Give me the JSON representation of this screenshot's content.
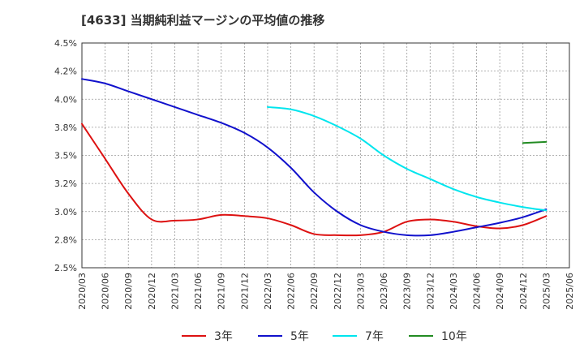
{
  "chart_data": {
    "type": "line",
    "title": "[4633]  当期純利益マージンの平均値の推移",
    "xlabel": "",
    "ylabel": "",
    "x_ticks": [
      "2020/03",
      "2020/06",
      "2020/09",
      "2020/12",
      "2021/03",
      "2021/06",
      "2021/09",
      "2021/12",
      "2022/03",
      "2022/06",
      "2022/09",
      "2022/12",
      "2023/03",
      "2023/06",
      "2023/09",
      "2023/12",
      "2024/03",
      "2024/06",
      "2024/09",
      "2024/12",
      "2025/03",
      "2025/06"
    ],
    "y_ticks": [
      "2.5%",
      "2.8%",
      "3.0%",
      "3.2%",
      "3.5%",
      "3.8%",
      "4.0%",
      "4.2%",
      "4.5%"
    ],
    "ylim": [
      2.5,
      4.5
    ],
    "grid": true,
    "legend_position": "bottom",
    "series": [
      {
        "name": "3年",
        "color": "#dd1111",
        "x": [
          "2020/03",
          "2020/06",
          "2020/09",
          "2020/12",
          "2021/03",
          "2021/06",
          "2021/09",
          "2021/12",
          "2022/03",
          "2022/06",
          "2022/09",
          "2022/12",
          "2023/03",
          "2023/06",
          "2023/09",
          "2023/12",
          "2024/03",
          "2024/06",
          "2024/09",
          "2024/12",
          "2025/03"
        ],
        "values": [
          3.78,
          3.47,
          3.16,
          2.93,
          2.92,
          2.93,
          2.97,
          2.96,
          2.94,
          2.88,
          2.8,
          2.79,
          2.79,
          2.82,
          2.91,
          2.93,
          2.91,
          2.87,
          2.85,
          2.88,
          2.96
        ]
      },
      {
        "name": "5年",
        "color": "#1111cc",
        "x": [
          "2020/03",
          "2020/06",
          "2020/09",
          "2020/12",
          "2021/03",
          "2021/06",
          "2021/09",
          "2021/12",
          "2022/03",
          "2022/06",
          "2022/09",
          "2022/12",
          "2023/03",
          "2023/06",
          "2023/09",
          "2023/12",
          "2024/03",
          "2024/06",
          "2024/09",
          "2024/12",
          "2025/03"
        ],
        "values": [
          4.18,
          4.14,
          4.07,
          4.0,
          3.93,
          3.86,
          3.79,
          3.7,
          3.57,
          3.39,
          3.17,
          3.0,
          2.88,
          2.82,
          2.79,
          2.79,
          2.82,
          2.86,
          2.9,
          2.95,
          3.02
        ]
      },
      {
        "name": "7年",
        "color": "#00e5ee",
        "x": [
          "2022/03",
          "2022/06",
          "2022/09",
          "2022/12",
          "2023/03",
          "2023/06",
          "2023/09",
          "2023/12",
          "2024/03",
          "2024/06",
          "2024/09",
          "2024/12",
          "2025/03"
        ],
        "values": [
          3.93,
          3.91,
          3.85,
          3.76,
          3.65,
          3.5,
          3.38,
          3.29,
          3.2,
          3.13,
          3.08,
          3.04,
          3.01
        ]
      },
      {
        "name": "10年",
        "color": "#228b22",
        "x": [
          "2024/12",
          "2025/03"
        ],
        "values": [
          3.61,
          3.62
        ]
      }
    ]
  },
  "colors": {
    "frame": "#333333",
    "grid": "#999999"
  }
}
